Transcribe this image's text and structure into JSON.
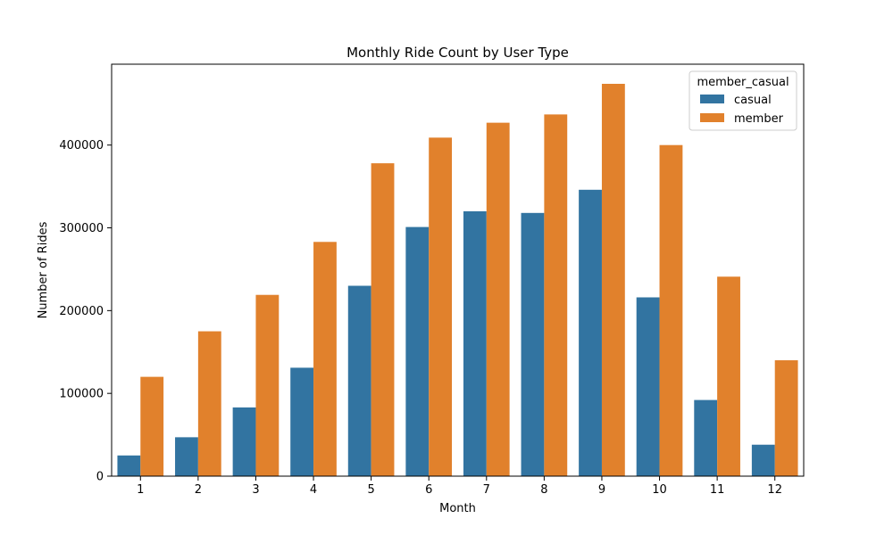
{
  "chart_data": {
    "type": "bar",
    "title": "Monthly Ride Count by User Type",
    "xlabel": "Month",
    "ylabel": "Number of Rides",
    "categories": [
      "1",
      "2",
      "3",
      "4",
      "5",
      "6",
      "7",
      "8",
      "9",
      "10",
      "11",
      "12"
    ],
    "series": [
      {
        "name": "casual",
        "color": "#3274a1",
        "values": [
          25000,
          47000,
          83000,
          131000,
          230000,
          301000,
          320000,
          318000,
          346000,
          216000,
          92000,
          38000
        ]
      },
      {
        "name": "member",
        "color": "#e1812c",
        "values": [
          120000,
          175000,
          219000,
          283000,
          378000,
          409000,
          427000,
          437000,
          474000,
          400000,
          241000,
          140000
        ]
      }
    ],
    "ylim": [
      0,
      497700
    ],
    "yticks": [
      0,
      100000,
      200000,
      300000,
      400000
    ],
    "grid": false,
    "legend": {
      "title": "member_casual",
      "position": "top-right"
    }
  }
}
